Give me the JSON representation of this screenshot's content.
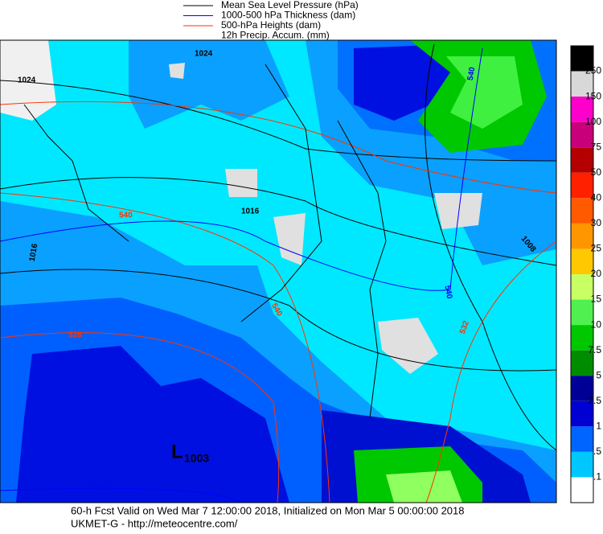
{
  "legend": [
    {
      "label": "Mean Sea Level Pressure (hPa)",
      "color": "#000000"
    },
    {
      "label": "1000-500 hPa Thickness (dam)",
      "color": "#0000ff"
    },
    {
      "label": "500-hPa Heights (dam)",
      "color": "#ff3300"
    },
    {
      "label": "12h Precip. Accum. (mm)"
    }
  ],
  "colorbar": {
    "labels": [
      "250",
      "150",
      "100",
      "75",
      "50",
      "40",
      "30",
      "25",
      "20",
      "15",
      "10",
      "7.5",
      "5",
      "2.5",
      "1",
      ".5",
      ".1"
    ],
    "colors": [
      "#000000",
      "#d8d8d8",
      "#ff00cc",
      "#c8007a",
      "#b40000",
      "#ff2000",
      "#ff5a00",
      "#ff9600",
      "#ffc800",
      "#c8ff64",
      "#50f050",
      "#00c800",
      "#008c00",
      "#000096",
      "#0000d2",
      "#0064ff",
      "#00c8ff",
      "#ffffff"
    ]
  },
  "pressure_labels": [
    "1024",
    "1024",
    "1016",
    "1016",
    "1008"
  ],
  "thickness_labels": [
    "540",
    "540"
  ],
  "height_labels": [
    "540",
    "540",
    "528",
    "532"
  ],
  "low": {
    "symbol": "L",
    "value": "1003"
  },
  "footer": {
    "line1": "60-h Fcst Valid on Wed Mar  7 12:00:00 2018, Initialized on Mon Mar  5 00:00:00 2018",
    "line2": "UKMET-G  - http://meteocentre.com/"
  }
}
